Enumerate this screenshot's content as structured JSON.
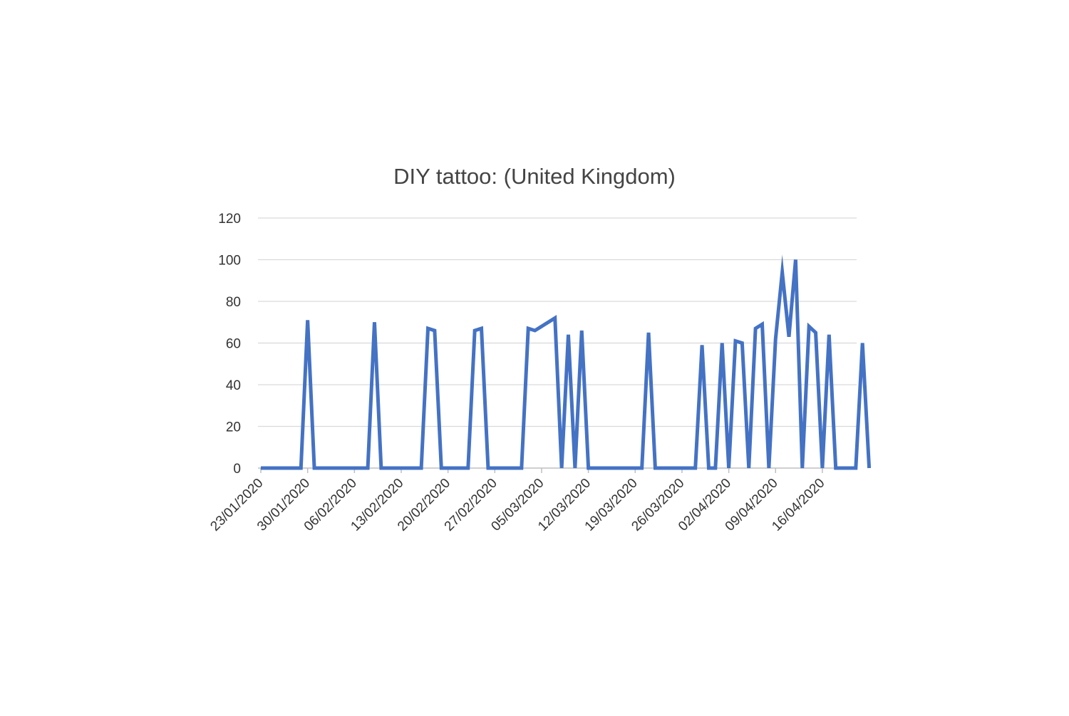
{
  "chart_data": {
    "type": "line",
    "title": "DIY tattoo: (United Kingdom)",
    "xlabel": "",
    "ylabel": "",
    "ylim": [
      0,
      120
    ],
    "yticks": [
      0,
      20,
      40,
      60,
      80,
      100,
      120
    ],
    "grid": true,
    "legend": "none",
    "x_tick_labels": [
      "23/01/2020",
      "30/01/2020",
      "06/02/2020",
      "13/02/2020",
      "20/02/2020",
      "27/02/2020",
      "05/03/2020",
      "12/03/2020",
      "19/03/2020",
      "26/03/2020",
      "02/04/2020",
      "09/04/2020",
      "16/04/2020"
    ],
    "x_start": "23/01/2020",
    "series": [
      {
        "color": "#4472C4",
        "values": [
          0,
          0,
          0,
          0,
          0,
          0,
          0,
          71,
          0,
          0,
          0,
          0,
          0,
          0,
          0,
          0,
          0,
          70,
          0,
          0,
          0,
          0,
          0,
          0,
          0,
          67,
          66,
          0,
          0,
          0,
          0,
          0,
          66,
          67,
          0,
          0,
          0,
          0,
          0,
          0,
          67,
          66,
          68,
          70,
          72,
          0,
          64,
          0,
          66,
          0,
          0,
          0,
          0,
          0,
          0,
          0,
          0,
          0,
          65,
          0,
          0,
          0,
          0,
          0,
          0,
          0,
          59,
          0,
          0,
          60,
          0,
          61,
          60,
          0,
          67,
          69,
          0,
          62,
          94,
          63,
          100,
          0,
          68,
          65,
          0,
          64,
          0,
          0,
          0,
          0,
          60,
          0
        ]
      }
    ]
  },
  "colors": {
    "line": "#4472C4",
    "grid": "#d9d9d9",
    "axis": "#bfbfbf"
  }
}
